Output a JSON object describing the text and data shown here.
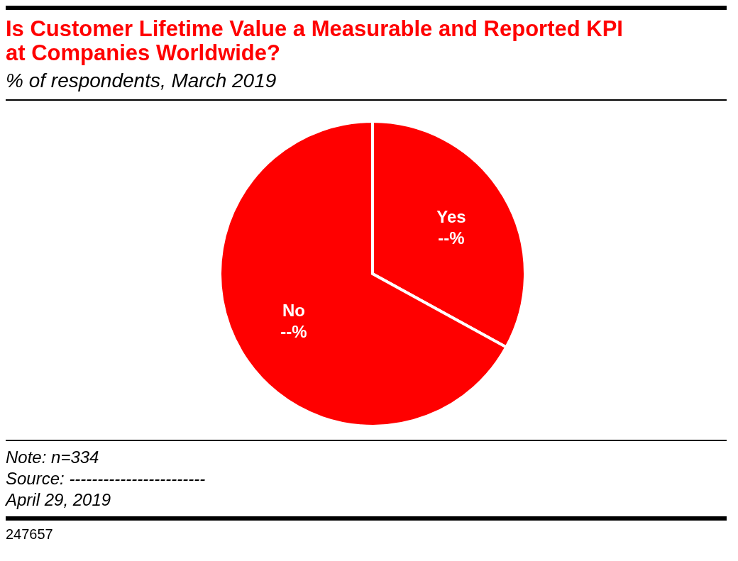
{
  "chart_data": {
    "type": "pie",
    "title": "Is Customer Lifetime Value a Measurable and Reported KPI at Companies Worldwide?",
    "subtitle": "% of respondents, March 2019",
    "categories": [
      "Yes",
      "No"
    ],
    "values": [
      33,
      67
    ],
    "colors": [
      "#ff0000",
      "#ff0000"
    ],
    "value_labels": [
      "--%",
      "--%"
    ],
    "annotations": [
      "Note: n=334",
      "Source: ------------------------",
      "April 29, 2019",
      "247657"
    ]
  }
}
